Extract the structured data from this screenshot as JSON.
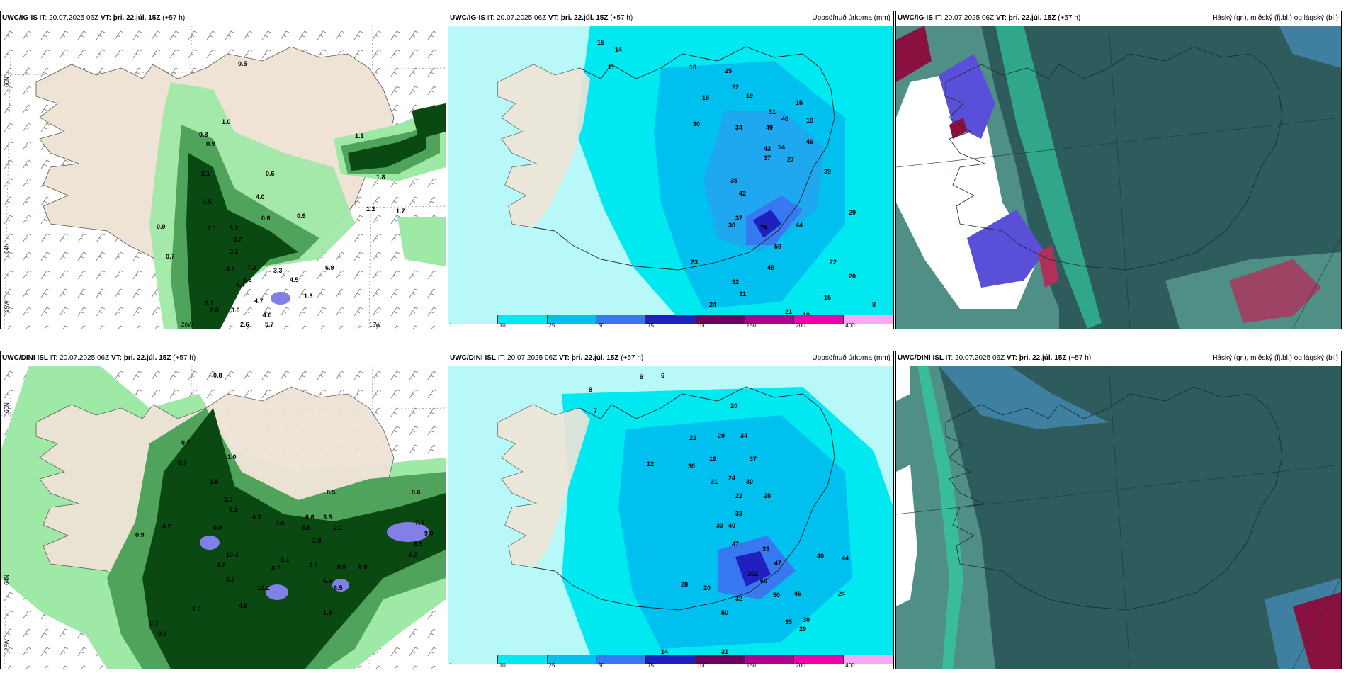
{
  "panels": [
    {
      "model": "UWC/IG-IS",
      "it_label": "IT:",
      "it": "20.07.2025 06Z",
      "vt_label": "VT:",
      "vt": "þri. 22.júl. 15Z",
      "lead": "(+57 h)",
      "right": ""
    },
    {
      "model": "UWC/IG-IS",
      "it_label": "IT:",
      "it": "20.07.2025 06Z",
      "vt_label": "VT:",
      "vt": "þri. 22.júl. 15Z",
      "lead": "(+57 h)",
      "right": "Uppsöfnuð úrkoma (mm)"
    },
    {
      "model": "UWC/IG-IS",
      "it_label": "IT:",
      "it": "20.07.2025 06Z",
      "vt_label": "VT:",
      "vt": "þri. 22.júl. 15Z",
      "lead": "(+57 h)",
      "right": "Háský (gr.), miðský (fj.bl.) og lágský (bl.)"
    },
    {
      "model": "UWC/DINI ISL",
      "it_label": "IT:",
      "it": "20.07.2025 06Z",
      "vt_label": "VT:",
      "vt": "þri. 22.júl. 15Z",
      "lead": "(+57 h)",
      "right": ""
    },
    {
      "model": "UWC/DINI ISL",
      "it_label": "IT:",
      "it": "20.07.2025 06Z",
      "vt_label": "VT:",
      "vt": "þri. 22.júl. 15Z",
      "lead": "(+57 h)",
      "right": "Uppsöfnuð úrkoma (mm)"
    },
    {
      "model": "UWC/DINI ISL",
      "it_label": "IT:",
      "it": "20.07.2025 06Z",
      "vt_label": "VT:",
      "vt": "þri. 22.júl. 15Z",
      "lead": "(+57 h)",
      "right": "Háský (gr.), miðský (fj.bl.) og lágský (bl.)"
    }
  ],
  "axis_labels": {
    "lat66": "66N",
    "lat64": "64N",
    "lon25": "25W",
    "lon20": "20W",
    "lon15": "15W"
  },
  "colorbar": {
    "labels": [
      "1",
      "10",
      "25",
      "50",
      "75",
      "100",
      "150",
      "200",
      "400"
    ],
    "colors": [
      "#b8f8f8",
      "#00e8f0",
      "#00c0f0",
      "#3878f0",
      "#2020c0",
      "#700060",
      "#b0008c",
      "#f000a8",
      "#f8a8f0"
    ]
  },
  "colors": {
    "land": "#efe3d6",
    "cloud_panel": "#2e5b5c",
    "precip_light": "#9fe9a6",
    "precip_dark": "#0a4a12",
    "precip_peak": "#8080e8"
  },
  "top_left_values": [
    "0.5",
    "1.0",
    "0.8",
    "0.9",
    "2.1",
    "3.5",
    "2.1",
    "3.2",
    "3.7",
    "3.2",
    "4.9",
    "7.2",
    "6.4",
    "6.6",
    "4.7",
    "3.6",
    "4.0",
    "2.6",
    "5.7",
    "0.9",
    "0.7",
    "0.6",
    "4.0",
    "0.6",
    "3.3",
    "0.9",
    "6.9",
    "4.5",
    "1.3",
    "1.1",
    "1.8",
    "1.2",
    "1.7",
    "3.1",
    "2.8"
  ],
  "top_mid_values": [
    "15",
    "14",
    "11",
    "10",
    "25",
    "22",
    "19",
    "18",
    "31",
    "15",
    "40",
    "18",
    "30",
    "34",
    "49",
    "43",
    "54",
    "37",
    "27",
    "46",
    "35",
    "42",
    "37",
    "38",
    "78",
    "59",
    "44",
    "45",
    "39",
    "22",
    "20",
    "32",
    "31",
    "24",
    "29",
    "23",
    "21",
    "19",
    "15",
    "8"
  ],
  "bot_left_values": [
    "0.8",
    "0.7",
    "0.7",
    "1.0",
    "3.5",
    "3.3",
    "5.1",
    "4.3",
    "0.9",
    "3.6",
    "6.6",
    "3.8",
    "5.5",
    "2.8",
    "2.1",
    "0.9",
    "4.2",
    "10.3",
    "4.2",
    "6.2",
    "6.7",
    "5.1",
    "10.1",
    "6.9",
    "9.9",
    "5.9",
    "1.5",
    "6.5",
    "4.9",
    "3.5",
    "1.0",
    "0.7",
    "0.7",
    "7.3",
    "9.0",
    "6.5",
    "4.2",
    "0.6",
    "0.5"
  ],
  "bot_mid_values": [
    "9",
    "6",
    "8",
    "7",
    "29",
    "20",
    "12",
    "34",
    "22",
    "30",
    "19",
    "31",
    "24",
    "22",
    "30",
    "28",
    "37",
    "47",
    "33",
    "40",
    "35",
    "33",
    "47",
    "102",
    "60",
    "50",
    "46",
    "40",
    "44",
    "24",
    "35",
    "30",
    "29",
    "32",
    "50",
    "31",
    "14",
    "28",
    "20"
  ]
}
